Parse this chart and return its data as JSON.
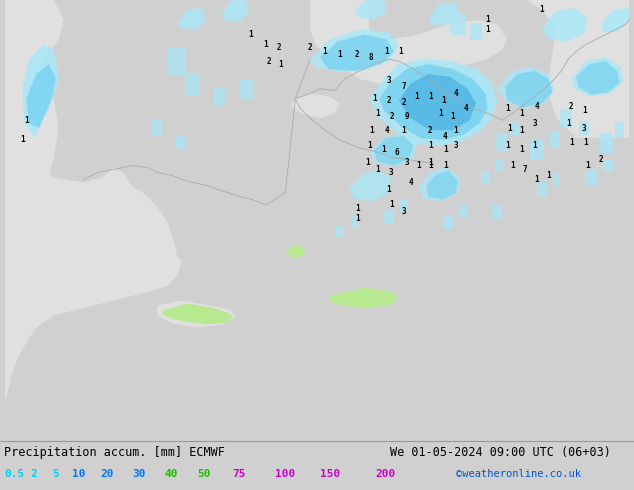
{
  "title_left": "Precipitation accum. [mm] ECMWF",
  "title_right": "We 01-05-2024 09:00 UTC (06+03)",
  "watermark": "©weatheronline.co.uk",
  "legend_values": [
    "0.5",
    "2",
    "5",
    "10",
    "20",
    "30",
    "40",
    "50",
    "75",
    "100",
    "150",
    "200"
  ],
  "legend_colors": [
    "#00ccff",
    "#00ccff",
    "#00ccff",
    "#0077ff",
    "#0077ff",
    "#0077ff",
    "#22bb00",
    "#22bb00",
    "#cc00cc",
    "#cc00cc",
    "#cc00cc",
    "#cc00cc"
  ],
  "bg_color": "#d0d0d0",
  "land_green": "#b8e890",
  "sea_gray": "#e0e0e0",
  "precip_light_cyan": "#a8e8f8",
  "precip_mid_cyan": "#70d0f0",
  "precip_blue": "#40a8e0",
  "border_color": "#aaaaaa",
  "figsize": [
    6.34,
    4.9
  ],
  "dpi": 100
}
